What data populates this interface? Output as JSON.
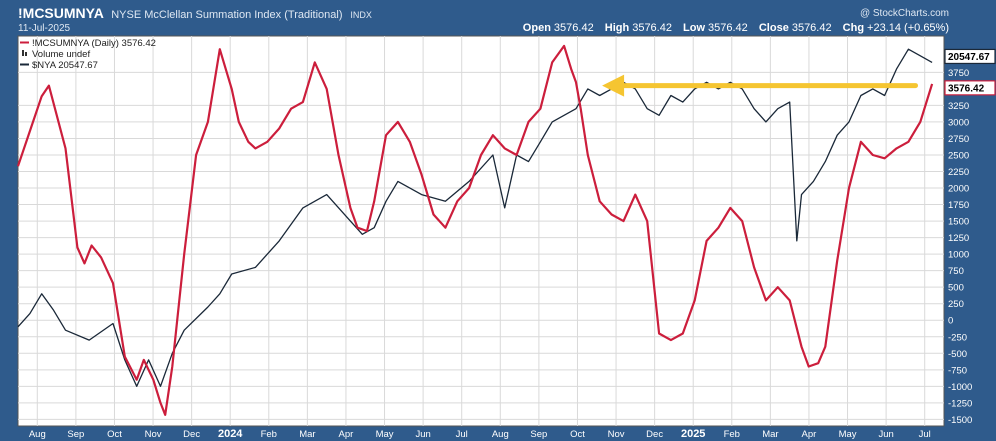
{
  "header": {
    "symbol": "!MCSUMNYA",
    "description": "NYSE McClellan Summation Index (Traditional)",
    "exchange": "INDX",
    "date": "11-Jul-2025",
    "credit": "@ StockCharts.com",
    "open_label": "Open",
    "open": "3576.42",
    "high_label": "High",
    "high": "3576.42",
    "low_label": "Low",
    "low": "3576.42",
    "close_label": "Close",
    "close": "3576.42",
    "chg_label": "Chg",
    "chg": "+23.14 (+0.65%)"
  },
  "legend": {
    "items": [
      {
        "label": "!MCSUMNYA (Daily) 3576.42",
        "color": "#cc1e3c"
      },
      {
        "label": "Volume undef",
        "color": "#333333"
      },
      {
        "label": "$NYA 20547.67",
        "color": "#1a2838"
      }
    ]
  },
  "colors": {
    "frame": "#2f5b8c",
    "summation": "#cc1e3c",
    "nya": "#1a2838",
    "arrow": "#f5c531",
    "grid": "#d9d9d9"
  },
  "chart_data": {
    "type": "line",
    "grid": true,
    "y_axis": {
      "side": "right",
      "ylim": [
        -1600,
        4300
      ],
      "ticks": [
        3750,
        3250,
        3000,
        2750,
        2500,
        2250,
        2000,
        1750,
        1500,
        1250,
        1000,
        750,
        500,
        250,
        0,
        -250,
        -500,
        -750,
        -1000,
        -1250,
        -1500
      ]
    },
    "x_axis": {
      "labels": [
        "Aug",
        "Sep",
        "Oct",
        "Nov",
        "Dec",
        "2024",
        "Feb",
        "Mar",
        "Apr",
        "May",
        "Jun",
        "Jul",
        "Aug",
        "Sep",
        "Oct",
        "Nov",
        "Dec",
        "2025",
        "Feb",
        "Mar",
        "Apr",
        "May",
        "Jun",
        "Jul"
      ],
      "bold": [
        "2024",
        "2025"
      ]
    },
    "value_labels": [
      {
        "text": "20547.67",
        "series": "$NYA"
      },
      {
        "text": "3576.42",
        "series": "!MCSUMNYA"
      }
    ],
    "series": [
      {
        "name": "!MCSUMNYA",
        "points": [
          [
            0,
            2330
          ],
          [
            1,
            3390
          ],
          [
            1.3,
            3550
          ],
          [
            2,
            2600
          ],
          [
            2.5,
            1100
          ],
          [
            2.8,
            860
          ],
          [
            3.1,
            1130
          ],
          [
            3.5,
            950
          ],
          [
            4,
            560
          ],
          [
            4.5,
            -550
          ],
          [
            5,
            -900
          ],
          [
            5.3,
            -600
          ],
          [
            5.7,
            -900
          ],
          [
            6,
            -1250
          ],
          [
            6.2,
            -1430
          ],
          [
            6.5,
            -700
          ],
          [
            7,
            1000
          ],
          [
            7.5,
            2500
          ],
          [
            8,
            3000
          ],
          [
            8.5,
            4100
          ],
          [
            9,
            3500
          ],
          [
            9.3,
            3000
          ],
          [
            9.7,
            2700
          ],
          [
            10,
            2600
          ],
          [
            10.5,
            2700
          ],
          [
            11,
            2900
          ],
          [
            11.5,
            3200
          ],
          [
            12,
            3300
          ],
          [
            12.5,
            3900
          ],
          [
            13,
            3500
          ],
          [
            13.5,
            2500
          ],
          [
            14,
            1700
          ],
          [
            14.3,
            1400
          ],
          [
            14.7,
            1350
          ],
          [
            15,
            1800
          ],
          [
            15.5,
            2800
          ],
          [
            16,
            3000
          ],
          [
            16.5,
            2700
          ],
          [
            17,
            2200
          ],
          [
            17.5,
            1600
          ],
          [
            18,
            1400
          ],
          [
            18.5,
            1800
          ],
          [
            19,
            2000
          ],
          [
            19.5,
            2500
          ],
          [
            20,
            2800
          ],
          [
            20.5,
            2600
          ],
          [
            21,
            2500
          ],
          [
            21.5,
            3000
          ],
          [
            22,
            3200
          ],
          [
            22.5,
            3900
          ],
          [
            23,
            4150
          ],
          [
            23.3,
            3800
          ],
          [
            23.5,
            3600
          ],
          [
            23.7,
            3200
          ],
          [
            24,
            2500
          ],
          [
            24.5,
            1800
          ],
          [
            25,
            1600
          ],
          [
            25.5,
            1500
          ],
          [
            26,
            1900
          ],
          [
            26.5,
            1500
          ],
          [
            27,
            -200
          ],
          [
            27.5,
            -300
          ],
          [
            28,
            -200
          ],
          [
            28.5,
            300
          ],
          [
            29,
            1200
          ],
          [
            29.5,
            1400
          ],
          [
            30,
            1700
          ],
          [
            30.5,
            1500
          ],
          [
            31,
            800
          ],
          [
            31.5,
            300
          ],
          [
            32,
            500
          ],
          [
            32.5,
            300
          ],
          [
            33,
            -400
          ],
          [
            33.3,
            -700
          ],
          [
            33.7,
            -650
          ],
          [
            34,
            -400
          ],
          [
            34.5,
            900
          ],
          [
            35,
            2000
          ],
          [
            35.5,
            2700
          ],
          [
            36,
            2500
          ],
          [
            36.5,
            2450
          ],
          [
            37,
            2600
          ],
          [
            37.5,
            2700
          ],
          [
            38,
            3000
          ],
          [
            38.5,
            3576
          ]
        ]
      },
      {
        "name": "$NYA",
        "points": [
          [
            0,
            -100
          ],
          [
            0.5,
            100
          ],
          [
            1,
            400
          ],
          [
            1.5,
            150
          ],
          [
            2,
            -150
          ],
          [
            3,
            -300
          ],
          [
            4,
            -50
          ],
          [
            4.5,
            -600
          ],
          [
            5,
            -1000
          ],
          [
            5.5,
            -600
          ],
          [
            6,
            -1000
          ],
          [
            6.5,
            -500
          ],
          [
            7,
            -150
          ],
          [
            8,
            200
          ],
          [
            8.5,
            400
          ],
          [
            9,
            700
          ],
          [
            10,
            800
          ],
          [
            11,
            1200
          ],
          [
            12,
            1700
          ],
          [
            13,
            1900
          ],
          [
            14,
            1500
          ],
          [
            14.5,
            1300
          ],
          [
            15,
            1400
          ],
          [
            15.5,
            1800
          ],
          [
            16,
            2100
          ],
          [
            17,
            1900
          ],
          [
            18,
            1800
          ],
          [
            19,
            2100
          ],
          [
            20,
            2500
          ],
          [
            20.5,
            1700
          ],
          [
            21,
            2500
          ],
          [
            21.5,
            2400
          ],
          [
            22,
            2700
          ],
          [
            22.5,
            3000
          ],
          [
            23,
            3100
          ],
          [
            23.5,
            3200
          ],
          [
            24,
            3500
          ],
          [
            24.5,
            3400
          ],
          [
            25,
            3500
          ],
          [
            25.5,
            3600
          ],
          [
            26,
            3500
          ],
          [
            26.5,
            3200
          ],
          [
            27,
            3100
          ],
          [
            27.5,
            3400
          ],
          [
            28,
            3300
          ],
          [
            28.5,
            3500
          ],
          [
            29,
            3600
          ],
          [
            29.5,
            3500
          ],
          [
            30,
            3600
          ],
          [
            30.5,
            3500
          ],
          [
            31,
            3200
          ],
          [
            31.5,
            3000
          ],
          [
            32,
            3200
          ],
          [
            32.5,
            3300
          ],
          [
            32.8,
            1200
          ],
          [
            33,
            1900
          ],
          [
            33.5,
            2100
          ],
          [
            34,
            2400
          ],
          [
            34.5,
            2800
          ],
          [
            35,
            3000
          ],
          [
            35.5,
            3400
          ],
          [
            36,
            3500
          ],
          [
            36.5,
            3400
          ],
          [
            37,
            3800
          ],
          [
            37.5,
            4100
          ],
          [
            38,
            4000
          ],
          [
            38.5,
            3900
          ]
        ]
      }
    ],
    "x_extent": [
      0,
      39
    ],
    "annotation": {
      "type": "arrow",
      "color": "#f5c531",
      "y_level": 3550,
      "from_x": 37.8,
      "to_x": 24.6
    }
  }
}
